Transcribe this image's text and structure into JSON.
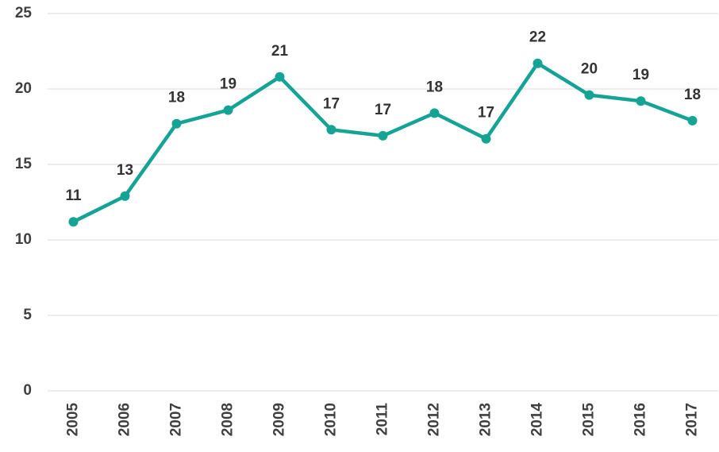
{
  "chart_data": {
    "type": "line",
    "categories": [
      "2005",
      "2006",
      "2007",
      "2008",
      "2009",
      "2010",
      "2011",
      "2012",
      "2013",
      "2014",
      "2015",
      "2016",
      "2017"
    ],
    "values": [
      11.2,
      12.9,
      17.7,
      18.6,
      20.8,
      17.3,
      16.9,
      18.4,
      16.7,
      21.7,
      19.6,
      19.2,
      17.9
    ],
    "value_labels": [
      "11",
      "13",
      "18",
      "19",
      "21",
      "17",
      "17",
      "18",
      "17",
      "22",
      "20",
      "19",
      "18"
    ],
    "color": "#15a396",
    "ylim": [
      0,
      25
    ],
    "yticks": [
      0,
      5,
      10,
      15,
      20,
      25
    ],
    "grid": true
  }
}
